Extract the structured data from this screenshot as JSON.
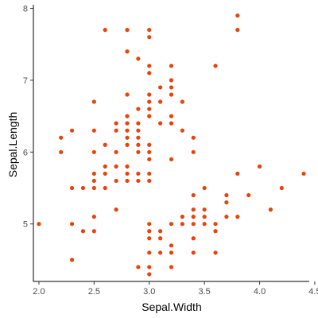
{
  "chart_data": {
    "type": "scatter",
    "title": "",
    "xlabel": "Sepal.Width",
    "ylabel": "Sepal.Length",
    "xlim": [
      1.95,
      4.45
    ],
    "ylim": [
      4.2,
      8.05
    ],
    "xticks": [
      2.0,
      2.5,
      3.0,
      3.5,
      4.0,
      4.5
    ],
    "xtick_labels": [
      "2.0",
      "2.5",
      "3.0",
      "3.5",
      "4.0",
      "4.5"
    ],
    "yticks": [
      5,
      6,
      7,
      8
    ],
    "ytick_labels": [
      "5",
      "6",
      "7",
      "8"
    ],
    "grid": false,
    "point_color": "#e8430a",
    "points": [
      [
        2.0,
        5.0
      ],
      [
        2.2,
        6.0
      ],
      [
        2.2,
        6.2
      ],
      [
        2.3,
        4.5
      ],
      [
        2.3,
        5.0
      ],
      [
        2.3,
        5.5
      ],
      [
        2.3,
        6.3
      ],
      [
        2.4,
        4.9
      ],
      [
        2.4,
        5.5
      ],
      [
        2.5,
        4.9
      ],
      [
        2.5,
        5.1
      ],
      [
        2.5,
        5.5
      ],
      [
        2.5,
        5.6
      ],
      [
        2.5,
        5.7
      ],
      [
        2.5,
        6.0
      ],
      [
        2.5,
        6.3
      ],
      [
        2.5,
        6.7
      ],
      [
        2.6,
        5.5
      ],
      [
        2.6,
        5.7
      ],
      [
        2.6,
        5.8
      ],
      [
        2.6,
        6.1
      ],
      [
        2.6,
        7.7
      ],
      [
        2.7,
        5.2
      ],
      [
        2.7,
        5.6
      ],
      [
        2.7,
        5.8
      ],
      [
        2.7,
        6.0
      ],
      [
        2.7,
        6.3
      ],
      [
        2.7,
        6.4
      ],
      [
        2.8,
        5.6
      ],
      [
        2.8,
        5.7
      ],
      [
        2.8,
        5.8
      ],
      [
        2.8,
        6.1
      ],
      [
        2.8,
        6.2
      ],
      [
        2.8,
        6.3
      ],
      [
        2.8,
        6.4
      ],
      [
        2.8,
        6.5
      ],
      [
        2.8,
        6.8
      ],
      [
        2.8,
        7.4
      ],
      [
        2.8,
        7.7
      ],
      [
        2.9,
        4.4
      ],
      [
        2.9,
        5.6
      ],
      [
        2.9,
        5.7
      ],
      [
        2.9,
        6.0
      ],
      [
        2.9,
        6.1
      ],
      [
        2.9,
        6.2
      ],
      [
        2.9,
        6.3
      ],
      [
        2.9,
        6.4
      ],
      [
        2.9,
        6.6
      ],
      [
        2.9,
        7.3
      ],
      [
        3.0,
        4.3
      ],
      [
        3.0,
        4.4
      ],
      [
        3.0,
        4.6
      ],
      [
        3.0,
        4.8
      ],
      [
        3.0,
        4.9
      ],
      [
        3.0,
        5.0
      ],
      [
        3.0,
        5.6
      ],
      [
        3.0,
        5.7
      ],
      [
        3.0,
        5.9
      ],
      [
        3.0,
        6.0
      ],
      [
        3.0,
        6.1
      ],
      [
        3.0,
        6.5
      ],
      [
        3.0,
        6.6
      ],
      [
        3.0,
        6.7
      ],
      [
        3.0,
        6.8
      ],
      [
        3.0,
        7.1
      ],
      [
        3.0,
        7.2
      ],
      [
        3.0,
        7.6
      ],
      [
        3.0,
        7.7
      ],
      [
        3.1,
        4.6
      ],
      [
        3.1,
        4.8
      ],
      [
        3.1,
        4.9
      ],
      [
        3.1,
        6.4
      ],
      [
        3.1,
        6.7
      ],
      [
        3.1,
        6.9
      ],
      [
        3.2,
        4.4
      ],
      [
        3.2,
        4.6
      ],
      [
        3.2,
        4.7
      ],
      [
        3.2,
        5.0
      ],
      [
        3.2,
        5.9
      ],
      [
        3.2,
        6.4
      ],
      [
        3.2,
        6.5
      ],
      [
        3.2,
        6.8
      ],
      [
        3.2,
        6.9
      ],
      [
        3.2,
        7.0
      ],
      [
        3.2,
        7.2
      ],
      [
        3.3,
        5.0
      ],
      [
        3.3,
        5.1
      ],
      [
        3.3,
        6.3
      ],
      [
        3.3,
        6.7
      ],
      [
        3.4,
        4.6
      ],
      [
        3.4,
        4.8
      ],
      [
        3.4,
        5.0
      ],
      [
        3.4,
        5.1
      ],
      [
        3.4,
        5.2
      ],
      [
        3.4,
        5.4
      ],
      [
        3.4,
        6.0
      ],
      [
        3.4,
        6.2
      ],
      [
        3.5,
        5.0
      ],
      [
        3.5,
        5.1
      ],
      [
        3.5,
        5.2
      ],
      [
        3.5,
        5.5
      ],
      [
        3.6,
        4.6
      ],
      [
        3.6,
        4.9
      ],
      [
        3.6,
        5.0
      ],
      [
        3.6,
        7.2
      ],
      [
        3.7,
        5.1
      ],
      [
        3.7,
        5.3
      ],
      [
        3.7,
        5.4
      ],
      [
        3.8,
        5.1
      ],
      [
        3.8,
        5.7
      ],
      [
        3.8,
        7.7
      ],
      [
        3.8,
        7.9
      ],
      [
        3.9,
        5.4
      ],
      [
        4.0,
        5.8
      ],
      [
        4.1,
        5.2
      ],
      [
        4.2,
        5.5
      ],
      [
        4.4,
        5.7
      ]
    ]
  }
}
